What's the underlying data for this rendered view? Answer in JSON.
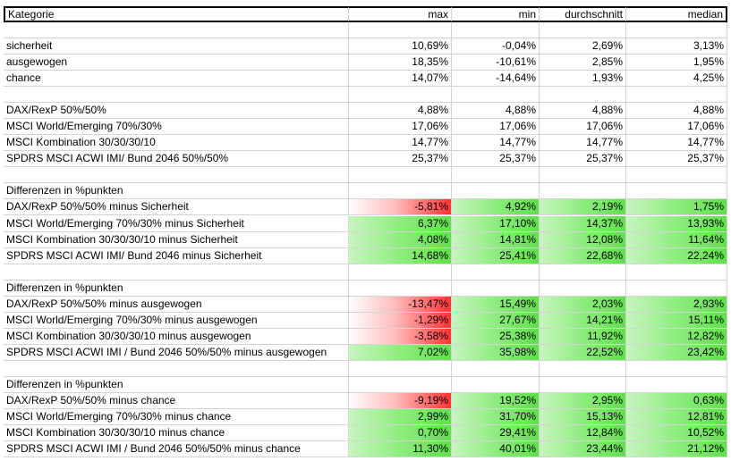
{
  "header": [
    "Kategorie",
    "max",
    "min",
    "durchschnitt",
    "median"
  ],
  "groups": [
    {
      "rows": [
        {
          "label": "sicherheit",
          "values": [
            "10,69%",
            "-0,04%",
            "2,69%",
            "3,13%"
          ]
        },
        {
          "label": "ausgewogen",
          "values": [
            "18,35%",
            "-10,61%",
            "2,85%",
            "1,95%"
          ]
        },
        {
          "label": "chance",
          "values": [
            "14,07%",
            "-14,64%",
            "1,93%",
            "4,25%"
          ]
        }
      ]
    },
    {
      "rows": [
        {
          "label": "DAX/RexP 50%/50%",
          "values": [
            "4,88%",
            "4,88%",
            "4,88%",
            "4,88%"
          ]
        },
        {
          "label": "MSCI World/Emerging 70%/30%",
          "values": [
            "17,06%",
            "17,06%",
            "17,06%",
            "17,06%"
          ]
        },
        {
          "label": "MSCI Kombination 30/30/30/10",
          "values": [
            "14,77%",
            "14,77%",
            "14,77%",
            "14,77%"
          ]
        },
        {
          "label": "SPDRS MSCI ACWI IMI/ Bund 2046 50%/50%",
          "values": [
            "25,37%",
            "25,37%",
            "25,37%",
            "25,37%"
          ]
        }
      ]
    },
    {
      "heading": "Differenzen in %punkten",
      "data_bars": true,
      "rows": [
        {
          "label": "DAX/RexP 50%/50% minus Sicherheit",
          "values": [
            "-5,81%",
            "4,92%",
            "2,19%",
            "1,75%"
          ]
        },
        {
          "label": "MSCI World/Emerging 70%/30% minus Sicherheit",
          "values": [
            "6,37%",
            "17,10%",
            "14,37%",
            "13,93%"
          ]
        },
        {
          "label": "MSCI Kombination 30/30/30/10 minus Sicherheit",
          "values": [
            "4,08%",
            "14,81%",
            "12,08%",
            "11,64%"
          ]
        },
        {
          "label": "SPDRS MSCI ACWI IMI/ Bund 2046 minus Sicherheit",
          "values": [
            "14,68%",
            "25,41%",
            "22,68%",
            "22,24%"
          ]
        }
      ]
    },
    {
      "heading": "Differenzen in %punkten",
      "data_bars": true,
      "rows": [
        {
          "label": "DAX/RexP 50%/50% minus ausgewogen",
          "values": [
            "-13,47%",
            "15,49%",
            "2,03%",
            "2,93%"
          ]
        },
        {
          "label": "MSCI World/Emerging 70%/30% minus ausgewogen",
          "values": [
            "-1,29%",
            "27,67%",
            "14,21%",
            "15,11%"
          ]
        },
        {
          "label": "MSCI Kombination 30/30/30/10 minus ausgewogen",
          "values": [
            "-3,58%",
            "25,38%",
            "11,92%",
            "12,82%"
          ]
        },
        {
          "label": "SPDRS MSCI ACWI IMI / Bund 2046  50%/50% minus ausgewogen",
          "values": [
            "7,02%",
            "35,98%",
            "22,52%",
            "23,42%"
          ]
        }
      ]
    },
    {
      "heading": "Differenzen in %punkten",
      "data_bars": true,
      "rows": [
        {
          "label": "DAX/RexP 50%/50% minus chance",
          "values": [
            "-9,19%",
            "19,52%",
            "2,95%",
            "0,63%"
          ]
        },
        {
          "label": "MSCI World/Emerging 70%/30% minus chance",
          "values": [
            "2,99%",
            "31,70%",
            "15,13%",
            "12,81%"
          ]
        },
        {
          "label": "MSCI Kombination 30/30/30/10 minus chance",
          "values": [
            "0,70%",
            "29,41%",
            "12,84%",
            "10,52%"
          ]
        },
        {
          "label": "SPDRS MSCI ACWI IMI / Bund 2046 50%/50% minus chance",
          "values": [
            "11,30%",
            "40,01%",
            "23,44%",
            "21,12%"
          ]
        }
      ]
    }
  ]
}
